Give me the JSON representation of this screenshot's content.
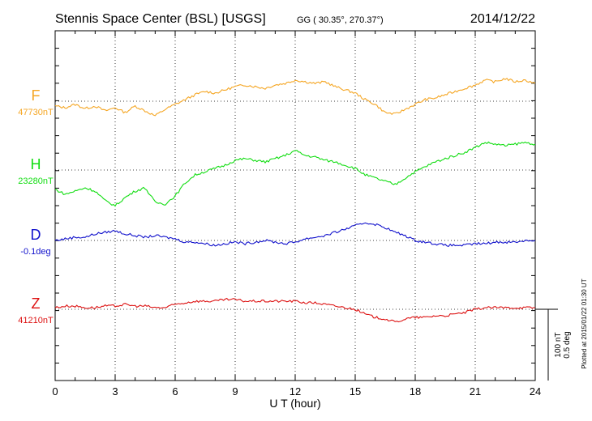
{
  "header": {
    "station": "Stennis Space Center (BSL)  [USGS]",
    "coords": "GG ( 30.35°, 270.37°)",
    "date": "2014/12/22"
  },
  "footer": {
    "plotted": "Plotted at 2015/01/22 01:30 UT",
    "scale_nt": "100 nT",
    "scale_deg": "0.5 deg"
  },
  "chart_data": {
    "type": "line",
    "xlabel": "U T (hour)",
    "ylabel": "",
    "xlim": [
      0,
      24
    ],
    "xticks": [
      "0",
      "3",
      "6",
      "9",
      "12",
      "15",
      "18",
      "21",
      "24"
    ],
    "grid": true,
    "series": [
      {
        "name": "F",
        "baseline_label": "47730nT",
        "color": "#F5A623",
        "x": [
          0,
          0.5,
          1,
          1.5,
          2,
          2.5,
          3,
          3.5,
          4,
          4.5,
          5,
          5.5,
          6,
          6.5,
          7,
          7.5,
          8,
          8.5,
          9,
          9.5,
          10,
          10.5,
          11,
          11.5,
          12,
          12.5,
          13,
          13.5,
          14,
          14.5,
          15,
          15.5,
          16,
          16.5,
          17,
          17.5,
          18,
          18.5,
          19,
          19.5,
          20,
          20.5,
          21,
          21.5,
          22,
          22.5,
          23,
          23.5,
          24
        ],
        "values": [
          -6,
          -8,
          -4,
          -9,
          -6,
          -12,
          -8,
          -14,
          -6,
          -12,
          -18,
          -10,
          -4,
          2,
          8,
          12,
          10,
          14,
          18,
          20,
          18,
          16,
          20,
          22,
          26,
          24,
          22,
          24,
          18,
          14,
          10,
          2,
          -4,
          -14,
          -16,
          -10,
          -4,
          2,
          4,
          8,
          12,
          16,
          20,
          26,
          24,
          28,
          24,
          26,
          22
        ]
      },
      {
        "name": "H",
        "baseline_label": "23280nT",
        "color": "#11DD11",
        "x": [
          0,
          0.5,
          1,
          1.5,
          2,
          2.5,
          3,
          3.5,
          4,
          4.5,
          5,
          5.5,
          6,
          6.5,
          7,
          7.5,
          8,
          8.5,
          9,
          9.5,
          10,
          10.5,
          11,
          11.5,
          12,
          12.5,
          13,
          13.5,
          14,
          14.5,
          15,
          15.5,
          16,
          16.5,
          17,
          17.5,
          18,
          18.5,
          19,
          19.5,
          20,
          20.5,
          21,
          21.5,
          22,
          22.5,
          23,
          23.5,
          24
        ],
        "values": [
          -24,
          -30,
          -26,
          -22,
          -26,
          -38,
          -44,
          -34,
          -26,
          -22,
          -40,
          -42,
          -32,
          -16,
          -6,
          -2,
          2,
          6,
          12,
          14,
          12,
          10,
          14,
          18,
          24,
          18,
          16,
          12,
          10,
          6,
          2,
          -6,
          -10,
          -14,
          -18,
          -10,
          -2,
          4,
          10,
          14,
          18,
          22,
          28,
          34,
          32,
          30,
          32,
          34,
          32
        ]
      },
      {
        "name": "D",
        "baseline_label": "-0.1deg",
        "color": "#1111CC",
        "x": [
          0,
          0.5,
          1,
          1.5,
          2,
          2.5,
          3,
          3.5,
          4,
          4.5,
          5,
          5.5,
          6,
          6.5,
          7,
          7.5,
          8,
          8.5,
          9,
          9.5,
          10,
          10.5,
          11,
          11.5,
          12,
          12.5,
          13,
          13.5,
          14,
          14.5,
          15,
          15.5,
          16,
          16.5,
          17,
          17.5,
          18,
          18.5,
          19,
          19.5,
          20,
          20.5,
          21,
          21.5,
          22,
          22.5,
          23,
          23.5,
          24
        ],
        "values": [
          0,
          2,
          4,
          4,
          8,
          10,
          12,
          8,
          6,
          4,
          6,
          4,
          2,
          -2,
          -2,
          -4,
          -6,
          -4,
          -2,
          -4,
          -2,
          0,
          -2,
          -4,
          -2,
          2,
          4,
          6,
          10,
          14,
          18,
          22,
          20,
          16,
          10,
          6,
          0,
          -2,
          -4,
          -6,
          -6,
          -6,
          -4,
          -4,
          -2,
          -2,
          -2,
          0,
          0
        ]
      },
      {
        "name": "Z",
        "baseline_label": "41210nT",
        "color": "#DD1111",
        "x": [
          0,
          0.5,
          1,
          1.5,
          2,
          2.5,
          3,
          3.5,
          4,
          4.5,
          5,
          5.5,
          6,
          6.5,
          7,
          7.5,
          8,
          8.5,
          9,
          9.5,
          10,
          10.5,
          11,
          11.5,
          12,
          12.5,
          13,
          13.5,
          14,
          14.5,
          15,
          15.5,
          16,
          16.5,
          17,
          17.5,
          18,
          18.5,
          19,
          19.5,
          20,
          20.5,
          21,
          21.5,
          22,
          22.5,
          23,
          23.5,
          24
        ],
        "values": [
          2,
          4,
          4,
          2,
          2,
          4,
          4,
          6,
          4,
          4,
          2,
          2,
          6,
          8,
          10,
          10,
          10,
          12,
          12,
          10,
          10,
          10,
          10,
          10,
          10,
          8,
          8,
          6,
          4,
          2,
          0,
          -6,
          -10,
          -12,
          -16,
          -12,
          -10,
          -10,
          -8,
          -8,
          -6,
          -4,
          0,
          2,
          2,
          2,
          2,
          2,
          2
        ]
      }
    ]
  }
}
